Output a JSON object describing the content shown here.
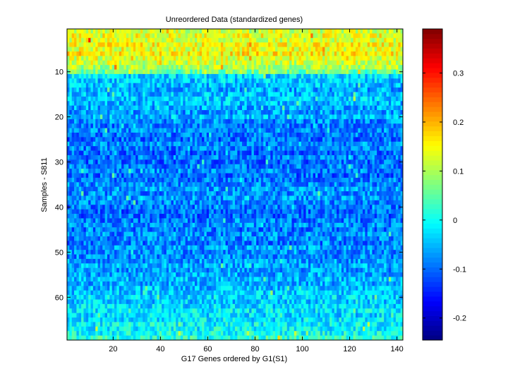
{
  "chart_data": {
    "type": "heatmap",
    "title": "Unreordered Data (standardized genes)",
    "xlabel": "G17 Genes ordered by G1(S1)",
    "ylabel": "Samples - S811",
    "n_columns": 142,
    "n_rows": 69,
    "xlim": [
      0.5,
      142.5
    ],
    "ylim": [
      0.5,
      69.5
    ],
    "y_direction": "top-to-bottom",
    "xticks": [
      20,
      40,
      60,
      80,
      100,
      120,
      140
    ],
    "yticks": [
      10,
      20,
      30,
      40,
      50,
      60
    ],
    "colormap": "jet",
    "color_range": [
      -0.245,
      0.39
    ],
    "colorbar_ticks": [
      -0.2,
      -0.1,
      0,
      0.1,
      0.2,
      0.3
    ],
    "colorbar_tick_labels": [
      "-0.2",
      "-0.1",
      "0",
      "0.1",
      "0.2",
      "0.3"
    ],
    "row_levels": [
      0.12,
      0.14,
      0.13,
      0.15,
      0.14,
      0.16,
      0.13,
      0.12,
      0.1,
      0.06,
      -0.03,
      -0.04,
      -0.05,
      -0.06,
      -0.05,
      -0.04,
      -0.05,
      -0.06,
      -0.07,
      -0.05,
      -0.08,
      -0.09,
      -0.08,
      -0.09,
      -0.1,
      -0.08,
      -0.09,
      -0.1,
      -0.09,
      -0.1,
      -0.09,
      -0.08,
      -0.1,
      -0.09,
      -0.08,
      -0.07,
      -0.08,
      -0.07,
      -0.08,
      -0.09,
      -0.1,
      -0.1,
      -0.09,
      -0.08,
      -0.09,
      -0.08,
      -0.08,
      -0.09,
      -0.07,
      -0.08,
      -0.08,
      -0.07,
      -0.06,
      -0.07,
      -0.06,
      -0.05,
      -0.06,
      -0.05,
      -0.04,
      -0.03,
      -0.04,
      -0.03,
      -0.02,
      -0.03,
      -0.02,
      -0.01,
      -0.01,
      0.0,
      0.02
    ]
  }
}
